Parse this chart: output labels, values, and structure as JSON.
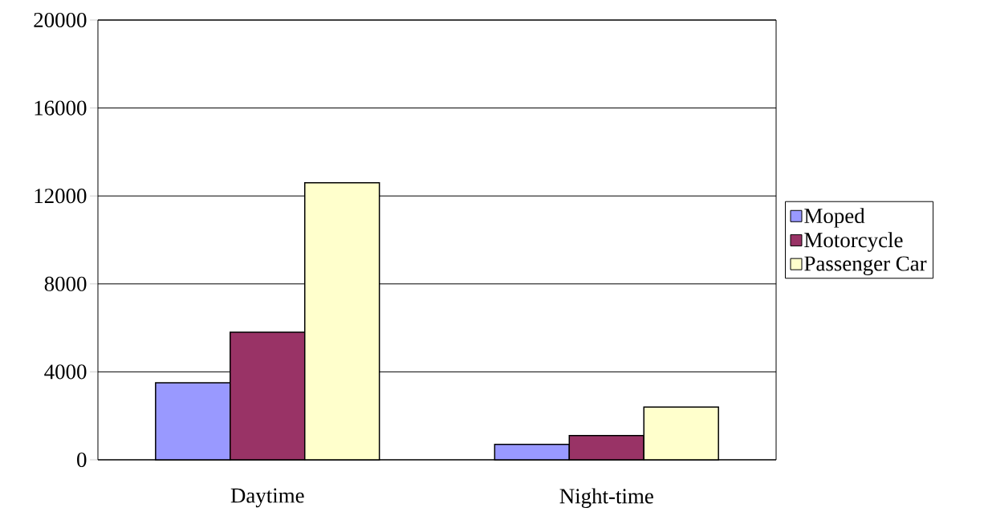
{
  "chart_data": {
    "type": "bar",
    "categories": [
      "Daytime",
      "Night-time"
    ],
    "series": [
      {
        "name": "Moped",
        "color": "#9999ff",
        "values": [
          3500,
          700
        ]
      },
      {
        "name": "Motorcycle",
        "color": "#993366",
        "values": [
          5800,
          1100
        ]
      },
      {
        "name": "Passenger Car",
        "color": "#ffffcc",
        "values": [
          12600,
          2400
        ]
      }
    ],
    "ylim": [
      0,
      20000
    ],
    "yticks": [
      0,
      4000,
      8000,
      12000,
      16000,
      20000
    ],
    "grid": "y",
    "legend": "right"
  }
}
